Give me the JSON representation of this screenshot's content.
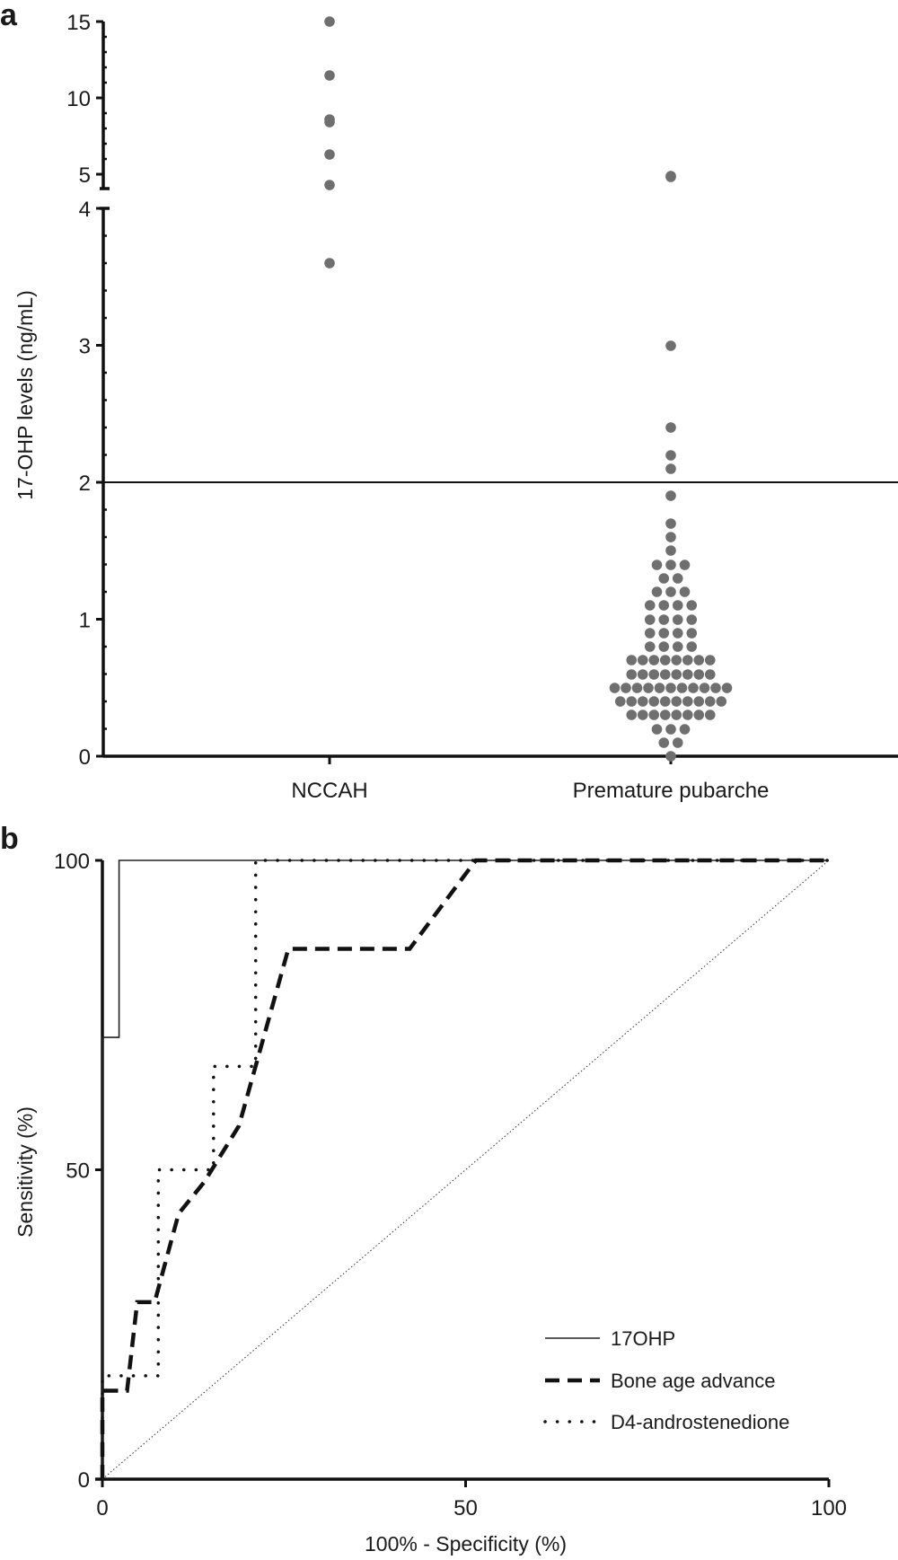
{
  "chart_data": [
    {
      "panel_label": "a",
      "type": "scatter",
      "subtype": "dot-plot",
      "ylabel": "17-OHP levels (ng/mL)",
      "categories": [
        "NCCAH",
        "Premature pubarche"
      ],
      "y_axis": {
        "broken": true,
        "lower_range": [
          0,
          4
        ],
        "upper_range": [
          5,
          15
        ],
        "lower_ticks": [
          "0",
          "1",
          "2",
          "3",
          "4"
        ],
        "upper_ticks": [
          "5",
          "10",
          "15"
        ]
      },
      "threshold": 2,
      "point_color": "#6f6f6f",
      "series": [
        {
          "name": "NCCAH",
          "values": [
            15,
            11.5,
            8.6,
            8.4,
            6.3,
            4.3,
            3.6
          ]
        },
        {
          "name": "Premature pubarche",
          "values": [
            4.9,
            4.8,
            3.0,
            2.4,
            2.2,
            2.1,
            1.9,
            1.7,
            1.6,
            1.5,
            1.4,
            1.4,
            1.4,
            1.3,
            1.3,
            1.2,
            1.2,
            1.2,
            1.1,
            1.1,
            1.1,
            1.1,
            1.0,
            1.0,
            1.0,
            1.0,
            0.9,
            0.9,
            0.9,
            0.9,
            0.8,
            0.8,
            0.8,
            0.8,
            0.7,
            0.7,
            0.7,
            0.7,
            0.7,
            0.7,
            0.7,
            0.7,
            0.6,
            0.6,
            0.6,
            0.6,
            0.6,
            0.6,
            0.6,
            0.6,
            0.5,
            0.5,
            0.5,
            0.5,
            0.5,
            0.5,
            0.5,
            0.5,
            0.5,
            0.5,
            0.5,
            0.4,
            0.4,
            0.4,
            0.4,
            0.4,
            0.4,
            0.4,
            0.4,
            0.4,
            0.4,
            0.3,
            0.3,
            0.3,
            0.3,
            0.3,
            0.3,
            0.3,
            0.3,
            0.2,
            0.2,
            0.2,
            0.1,
            0.1,
            0.0
          ]
        }
      ]
    },
    {
      "panel_label": "b",
      "type": "line",
      "subtype": "ROC",
      "xlabel": "100% - Specificity (%)",
      "ylabel": "Sensitivity (%)",
      "xlim": [
        0,
        100
      ],
      "ylim": [
        0,
        100
      ],
      "xticks": [
        "0",
        "50",
        "100"
      ],
      "yticks": [
        "0",
        "50",
        "100"
      ],
      "legend_position": "bottom-right",
      "series": [
        {
          "name": "17OHP",
          "style": "solid-thin",
          "points": [
            [
              0,
              0
            ],
            [
              0,
              71.4
            ],
            [
              2.3,
              71.4
            ],
            [
              2.3,
              100
            ],
            [
              100,
              100
            ]
          ]
        },
        {
          "name": "Bone age advance",
          "style": "dashed-thick",
          "points": [
            [
              0,
              0
            ],
            [
              0,
              14.3
            ],
            [
              3.4,
              14.3
            ],
            [
              4.8,
              28.6
            ],
            [
              7.2,
              28.6
            ],
            [
              10.5,
              42.9
            ],
            [
              14,
              48
            ],
            [
              18.8,
              57.1
            ],
            [
              25.6,
              85.7
            ],
            [
              42.3,
              85.7
            ],
            [
              51.4,
              100
            ],
            [
              100,
              100
            ]
          ]
        },
        {
          "name": "D4-androstenedione",
          "style": "dotted",
          "points": [
            [
              0,
              0
            ],
            [
              0,
              16.7
            ],
            [
              7.7,
              16.7
            ],
            [
              7.7,
              50
            ],
            [
              15.3,
              50
            ],
            [
              15.3,
              66.7
            ],
            [
              21.1,
              66.7
            ],
            [
              21.1,
              100
            ],
            [
              100,
              100
            ]
          ]
        },
        {
          "name": "reference",
          "style": "dotted-thin",
          "points": [
            [
              0,
              0
            ],
            [
              100,
              100
            ]
          ]
        }
      ]
    }
  ]
}
